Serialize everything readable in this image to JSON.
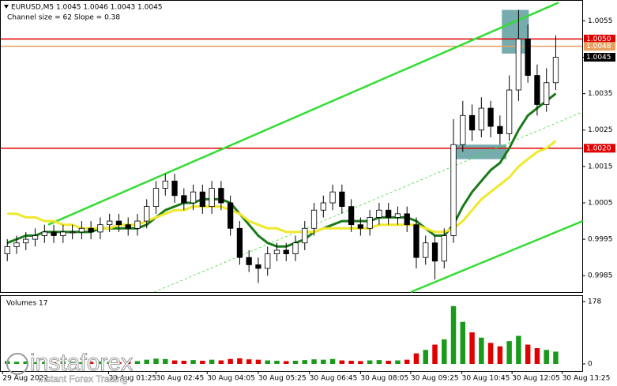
{
  "chart_data": {
    "type": "candlestick",
    "title": "EURUSD,M5  1.0045 1.0046 1.0043 1.0045",
    "subtitle": "Channel size = 62 Slope = 0.38",
    "xlim": [
      -0.7,
      61.85
    ],
    "ylim": [
      0.99805,
      1.00605
    ],
    "yticks": [
      1.0055,
      1.0045,
      1.0035,
      1.0025,
      1.0015,
      1.0005,
      0.9995,
      0.9985
    ],
    "xticks": [
      {
        "value": -0.5,
        "label": "29 Aug 2022"
      },
      {
        "value": 10.9,
        "label": "30 Aug 01:25"
      },
      {
        "value": 16,
        "label": "30 Aug 02:45"
      },
      {
        "value": 21.5,
        "label": "30 Aug 04:05"
      },
      {
        "value": 27,
        "label": "30 Aug 05:25"
      },
      {
        "value": 32.5,
        "label": "30 Aug 06:45"
      },
      {
        "value": 38,
        "label": "30 Aug 08:05"
      },
      {
        "value": 43.4,
        "label": "30 Aug 09:25"
      },
      {
        "value": 48.9,
        "label": "30 Aug 10:45"
      },
      {
        "value": 54.3,
        "label": "30 Aug 12:05"
      },
      {
        "value": 59.7,
        "label": "30 Aug 13:25"
      }
    ],
    "open": [
      0.9991,
      0.9993,
      0.9994,
      0.9995,
      0.9996,
      0.9997,
      0.9996,
      0.9997,
      0.9997,
      0.9998,
      0.9997,
      0.9999,
      1.0,
      0.9999,
      0.9998,
      1.0,
      1.0004,
      1.0009,
      1.0011,
      1.0007,
      1.0005,
      1.0008,
      1.0004,
      1.0009,
      1.0005,
      0.9998,
      0.999,
      0.9988,
      0.9987,
      0.9991,
      0.9992,
      0.9991,
      0.9994,
      0.9998,
      1.0003,
      1.0005,
      1.0008,
      1.0004,
      0.9999,
      0.9998,
      1.0001,
      1.0003,
      1.0001,
      1.0002,
      0.9999,
      0.999,
      0.9994,
      0.9989,
      0.9996,
      1.0021,
      1.0029,
      1.0025,
      1.0031,
      1.0026,
      1.0024,
      1.0036,
      1.005,
      1.004,
      1.0032,
      1.0038
    ],
    "high": [
      0.9995,
      0.9996,
      0.9997,
      0.9998,
      0.9999,
      0.9999,
      0.9999,
      0.9999,
      1.0,
      1.0,
      1.0001,
      1.0002,
      1.0002,
      1.0001,
      1.0002,
      1.0006,
      1.0011,
      1.0013,
      1.0013,
      1.0009,
      1.001,
      1.001,
      1.0011,
      1.0011,
      1.0007,
      1.0,
      0.9992,
      0.999,
      0.9993,
      0.9994,
      0.9994,
      0.9996,
      1.0,
      1.0005,
      1.0007,
      1.001,
      1.001,
      1.0006,
      1.0001,
      1.0003,
      1.0005,
      1.0005,
      1.0004,
      1.0004,
      1.0001,
      0.9996,
      0.9996,
      0.9998,
      1.0028,
      1.0033,
      1.0032,
      1.0034,
      1.0033,
      1.0029,
      1.004,
      1.0058,
      1.0054,
      1.0043,
      1.0042,
      1.0051
    ],
    "low": [
      0.9989,
      0.9991,
      0.9992,
      0.9993,
      0.9994,
      0.9994,
      0.9994,
      0.9995,
      0.9995,
      0.9995,
      0.9995,
      0.9997,
      0.9997,
      0.9996,
      0.9996,
      0.9998,
      1.0002,
      1.0007,
      1.0005,
      1.0003,
      1.0003,
      1.0002,
      1.0002,
      1.0003,
      0.9996,
      0.9988,
      0.9986,
      0.9983,
      0.9985,
      0.9989,
      0.9989,
      0.9989,
      0.9992,
      0.9996,
      1.0001,
      1.0003,
      1.0002,
      0.9997,
      0.9996,
      0.9996,
      0.9999,
      0.9999,
      0.9999,
      0.9997,
      0.9987,
      0.9988,
      0.9984,
      0.9987,
      0.9994,
      1.0019,
      1.0022,
      1.0023,
      1.0023,
      1.0021,
      1.0022,
      1.0033,
      1.0038,
      1.0029,
      1.003,
      1.0036
    ],
    "close": [
      0.9993,
      0.9994,
      0.9995,
      0.9996,
      0.9997,
      0.9996,
      0.9997,
      0.9997,
      0.9998,
      0.9997,
      0.9999,
      1.0,
      0.9999,
      0.9998,
      1.0,
      1.0004,
      1.0009,
      1.0011,
      1.0007,
      1.0005,
      1.0008,
      1.0004,
      1.0009,
      1.0005,
      0.9998,
      0.999,
      0.9988,
      0.9987,
      0.9991,
      0.9992,
      0.9991,
      0.9994,
      0.9998,
      1.0003,
      1.0005,
      1.0008,
      1.0004,
      0.9999,
      0.9998,
      1.0001,
      1.0003,
      1.0001,
      1.0002,
      0.9999,
      0.999,
      0.9994,
      0.9989,
      0.9996,
      1.0021,
      1.0029,
      1.0025,
      1.0031,
      1.0026,
      1.0024,
      1.0036,
      1.005,
      1.004,
      1.0032,
      1.0038,
      1.0045
    ],
    "series": [
      {
        "color": "#1a7a1a",
        "values": [
          0.9994,
          0.9995,
          0.9996,
          0.9996,
          0.9997,
          0.9997,
          0.9997,
          0.9997,
          0.9997,
          0.9997,
          0.9998,
          0.9998,
          0.9998,
          0.9998,
          0.9998,
          0.9999,
          1.0001,
          1.0003,
          1.0004,
          1.0005,
          1.0005,
          1.0006,
          1.0006,
          1.0006,
          1.0005,
          1.0002,
          0.9999,
          0.9996,
          0.9994,
          0.9993,
          0.9993,
          0.9994,
          0.9995,
          0.9997,
          0.9998,
          0.9999,
          1.0,
          1.0,
          1.0,
          1.0,
          1.0001,
          1.0001,
          1.0001,
          1.0001,
          1.0,
          0.9998,
          0.9996,
          0.9996,
          0.9999,
          1.0004,
          1.0008,
          1.0011,
          1.0014,
          1.0016,
          1.002,
          1.0025,
          1.0029,
          1.0031,
          1.0033,
          1.0035
        ]
      },
      {
        "color": "#f0e82a",
        "values": [
          1.0002,
          1.0002,
          1.0001,
          1.0001,
          1.0,
          1.0,
          0.9999,
          0.9999,
          0.9998,
          0.9998,
          0.9998,
          0.9998,
          0.9999,
          0.9999,
          0.9999,
          1.0,
          1.0001,
          1.0002,
          1.0003,
          1.0003,
          1.0004,
          1.0004,
          1.0004,
          1.0004,
          1.0003,
          1.0002,
          1.0,
          0.9999,
          0.9998,
          0.9998,
          0.9997,
          0.9997,
          0.9997,
          0.9997,
          0.9998,
          0.9998,
          0.9998,
          0.9998,
          0.9998,
          0.9998,
          0.9999,
          0.9999,
          0.9999,
          0.9999,
          0.9999,
          0.9998,
          0.9997,
          0.9997,
          0.9998,
          1.0,
          1.0003,
          1.0006,
          1.0008,
          1.001,
          1.0012,
          1.0015,
          1.0017,
          1.0019,
          1.002,
          1.0022
        ]
      }
    ],
    "trendlines": [
      {
        "x": [
          4.4,
          59.3
        ],
        "y": [
          0.9999,
          1.006
        ],
        "color": "#33dd33",
        "dashed": false
      },
      {
        "x": [
          43.4,
          61.9
        ],
        "y": [
          0.99805,
          1.0
        ],
        "color": "#33dd33",
        "dashed": false
      },
      {
        "x": [
          15.8,
          61.9
        ],
        "y": [
          0.99805,
          1.003
        ],
        "color": "#33dd33",
        "dashed": true
      }
    ],
    "zones": [
      {
        "x": [
          53.2,
          56.1
        ],
        "y": [
          1.0058,
          1.0046
        ],
        "color": "#5f9ea0"
      },
      {
        "x": [
          48.1,
          53.7
        ],
        "y": [
          1.0021,
          1.0017
        ],
        "color": "#5f9ea0"
      }
    ],
    "levels": [
      {
        "value": 1.005,
        "label": "1.0050",
        "color": "#e00000",
        "line": true
      },
      {
        "value": 1.0048,
        "label": "1.0048",
        "color": "#e8a060",
        "line": true
      },
      {
        "value": 1.0045,
        "label": "1.0045",
        "color": "#000000",
        "line": false
      },
      {
        "value": 1.002,
        "label": "1.0020",
        "color": "#e00000",
        "line": true
      }
    ],
    "volume": {
      "title": "Volumes 17",
      "ylim": [
        0,
        178
      ],
      "yticks": [
        178,
        0
      ],
      "up_color": "#1a9a1a",
      "down_color": "#e00000",
      "values": [
        8,
        6,
        7,
        5,
        6,
        5,
        7,
        6,
        5,
        6,
        7,
        6,
        5,
        6,
        8,
        12,
        15,
        14,
        10,
        9,
        11,
        9,
        12,
        10,
        14,
        16,
        13,
        12,
        10,
        9,
        8,
        9,
        11,
        13,
        12,
        14,
        10,
        9,
        8,
        10,
        11,
        9,
        10,
        12,
        30,
        40,
        55,
        70,
        165,
        120,
        90,
        75,
        60,
        50,
        65,
        80,
        55,
        45,
        40,
        35
      ]
    },
    "watermark": {
      "brand": "instaforex",
      "tagline": "Instant Forex Trading"
    }
  }
}
